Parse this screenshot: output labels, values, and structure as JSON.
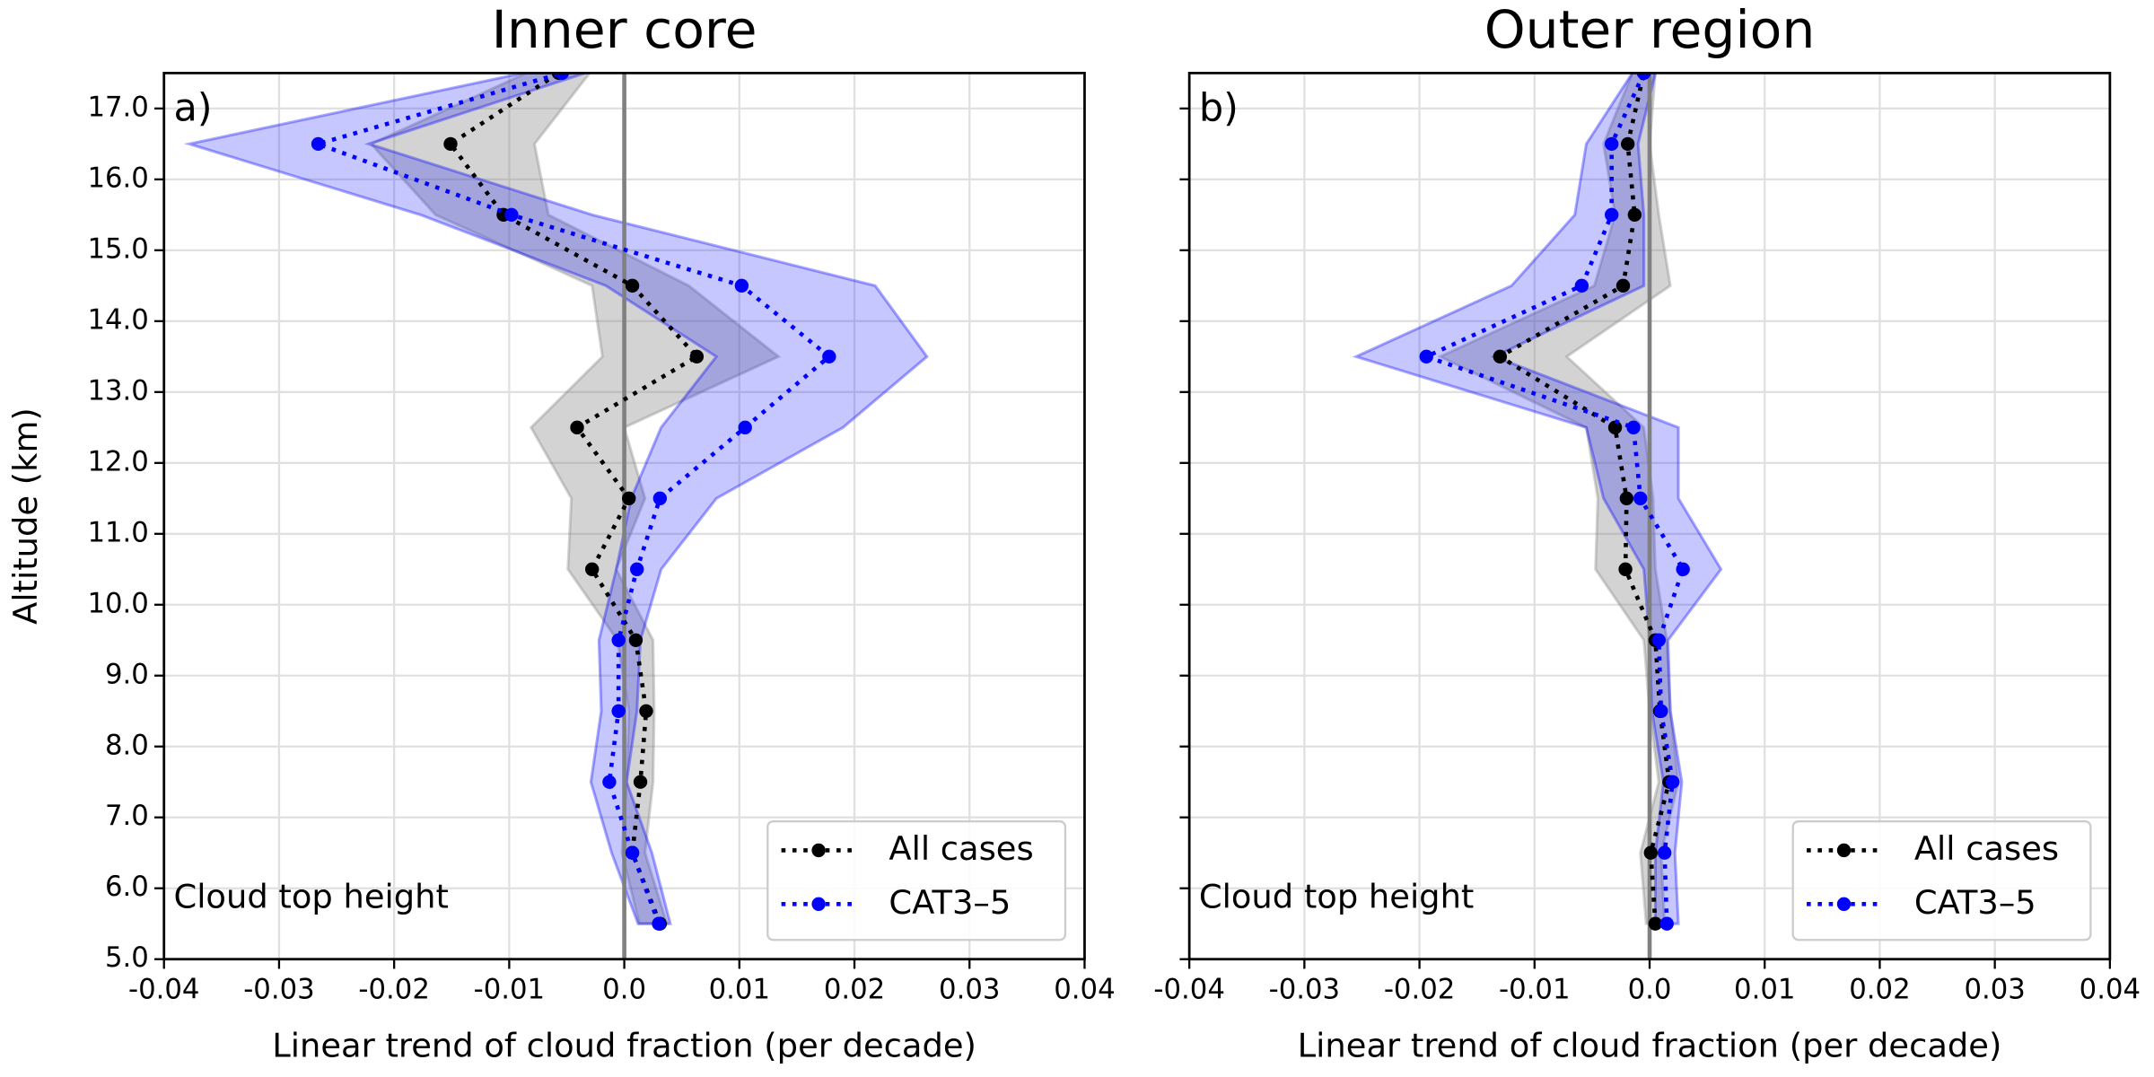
{
  "chart_data": [
    {
      "type": "line",
      "title": "Inner core",
      "panel_label": "a)",
      "annotation": "Cloud top height",
      "xlabel": "Linear trend of cloud fraction (per decade)",
      "ylabel": "Altitude (km)",
      "xlim": [
        -0.04,
        0.04
      ],
      "ylim": [
        5,
        17.5
      ],
      "xticks": [
        -0.04,
        -0.03,
        -0.02,
        -0.01,
        {
          "value": 0,
          "label": "0.0"
        },
        0.01,
        0.02,
        0.03,
        0.04
      ],
      "yticks": [
        {
          "value": 5,
          "label": "5.0"
        },
        {
          "value": 6,
          "label": "6.0"
        },
        {
          "value": 7,
          "label": "7.0"
        },
        {
          "value": 8,
          "label": "8.0"
        },
        {
          "value": 9,
          "label": "9.0"
        },
        {
          "value": 10,
          "label": "10.0"
        },
        {
          "value": 11,
          "label": "11.0"
        },
        {
          "value": 12,
          "label": "12.0"
        },
        {
          "value": 13,
          "label": "13.0"
        },
        {
          "value": 14,
          "label": "14.0"
        },
        {
          "value": 15,
          "label": "15.0"
        },
        {
          "value": 16,
          "label": "16.0"
        },
        {
          "value": 17,
          "label": "17.0"
        }
      ],
      "grid": true,
      "vline": 0,
      "legend": "lower right",
      "y": [
        5.5,
        6.5,
        7.5,
        8.5,
        9.5,
        10.5,
        11.5,
        12.5,
        13.5,
        14.5,
        15.5,
        16.5,
        17.5
      ],
      "series": [
        {
          "name": "All cases",
          "color": "#000000",
          "band_color": "#808080",
          "values": [
            0.0031,
            0.0007,
            0.0014,
            0.0019,
            0.001,
            -0.0028,
            0.0004,
            -0.0041,
            0.0063,
            0.0007,
            -0.0105,
            -0.0151,
            -0.0057
          ],
          "lower": [
            0.0013,
            -0.0002,
            0.0002,
            0.0004,
            -0.0006,
            -0.0049,
            -0.0046,
            -0.0081,
            -0.0019,
            -0.0028,
            -0.0164,
            -0.022,
            -0.0085
          ],
          "upper": [
            0.0037,
            0.0018,
            0.0025,
            0.0026,
            0.0025,
            -0.0007,
            0.0018,
            0.0,
            0.0134,
            0.0056,
            -0.0066,
            -0.0078,
            -0.003
          ]
        },
        {
          "name": "CAT3–5",
          "color": "#0000ff",
          "band_color": "#0000ff",
          "values": [
            0.003,
            0.0007,
            -0.0013,
            -0.0005,
            -0.0005,
            0.0011,
            0.0031,
            0.0105,
            0.0178,
            0.0102,
            -0.0098,
            -0.0266,
            -0.0054
          ],
          "lower": [
            0.0012,
            -0.0011,
            -0.0029,
            -0.002,
            -0.0022,
            -0.0007,
            0.0006,
            0.0032,
            0.008,
            -0.0016,
            -0.0177,
            -0.0378,
            -0.0088
          ],
          "upper": [
            0.004,
            0.0024,
            0.0002,
            0.0011,
            0.0014,
            0.0032,
            0.008,
            0.019,
            0.0263,
            0.0218,
            -0.0028,
            -0.0222,
            -0.0034
          ]
        }
      ]
    },
    {
      "type": "line",
      "title": "Outer region",
      "panel_label": "b)",
      "annotation": "Cloud top height",
      "xlabel": "Linear trend of cloud fraction (per decade)",
      "xlim": [
        -0.04,
        0.04
      ],
      "ylim": [
        5,
        17.5
      ],
      "xticks": [
        -0.04,
        -0.03,
        -0.02,
        -0.01,
        {
          "value": 0,
          "label": "0.0"
        },
        0.01,
        0.02,
        0.03,
        0.04
      ],
      "yticks": [
        5,
        6,
        7,
        8,
        9,
        10,
        11,
        12,
        13,
        14,
        15,
        16,
        17
      ],
      "grid": true,
      "vline": 0,
      "legend": "lower right",
      "y": [
        5.5,
        6.5,
        7.5,
        8.5,
        9.5,
        10.5,
        11.5,
        12.5,
        13.5,
        14.5,
        15.5,
        16.5,
        17.5
      ],
      "series": [
        {
          "name": "All cases",
          "color": "#000000",
          "band_color": "#808080",
          "values": [
            0.0005,
            0.0001,
            0.0017,
            0.0009,
            0.0005,
            -0.0021,
            -0.002,
            -0.003,
            -0.013,
            -0.0023,
            -0.0013,
            -0.0019,
            -0.0005
          ],
          "lower": [
            -0.0003,
            -0.0008,
            0.0008,
            0.0,
            -0.0005,
            -0.0047,
            -0.0045,
            -0.0055,
            -0.0182,
            -0.0048,
            -0.003,
            -0.004,
            -0.0015
          ],
          "upper": [
            0.0013,
            0.001,
            0.0025,
            0.0018,
            0.0015,
            0.0005,
            0.0003,
            -0.0005,
            -0.0072,
            0.0018,
            0.0008,
            0.0,
            0.0005
          ]
        },
        {
          "name": "CAT3–5",
          "color": "#0000ff",
          "band_color": "#0000ff",
          "values": [
            0.0015,
            0.0013,
            0.002,
            0.001,
            0.0008,
            0.0029,
            -0.0008,
            -0.0014,
            -0.0194,
            -0.0059,
            -0.0033,
            -0.0033,
            -0.0005
          ],
          "lower": [
            0.0005,
            0.0005,
            0.0012,
            0.0002,
            0.0,
            -0.0005,
            -0.004,
            -0.0055,
            -0.0255,
            -0.012,
            -0.0065,
            -0.0055,
            -0.0015
          ],
          "upper": [
            0.0025,
            0.0022,
            0.0028,
            0.0018,
            0.0016,
            0.0062,
            0.0025,
            0.0025,
            -0.0135,
            -0.0005,
            -0.0005,
            -0.001,
            0.0005
          ]
        }
      ]
    }
  ]
}
